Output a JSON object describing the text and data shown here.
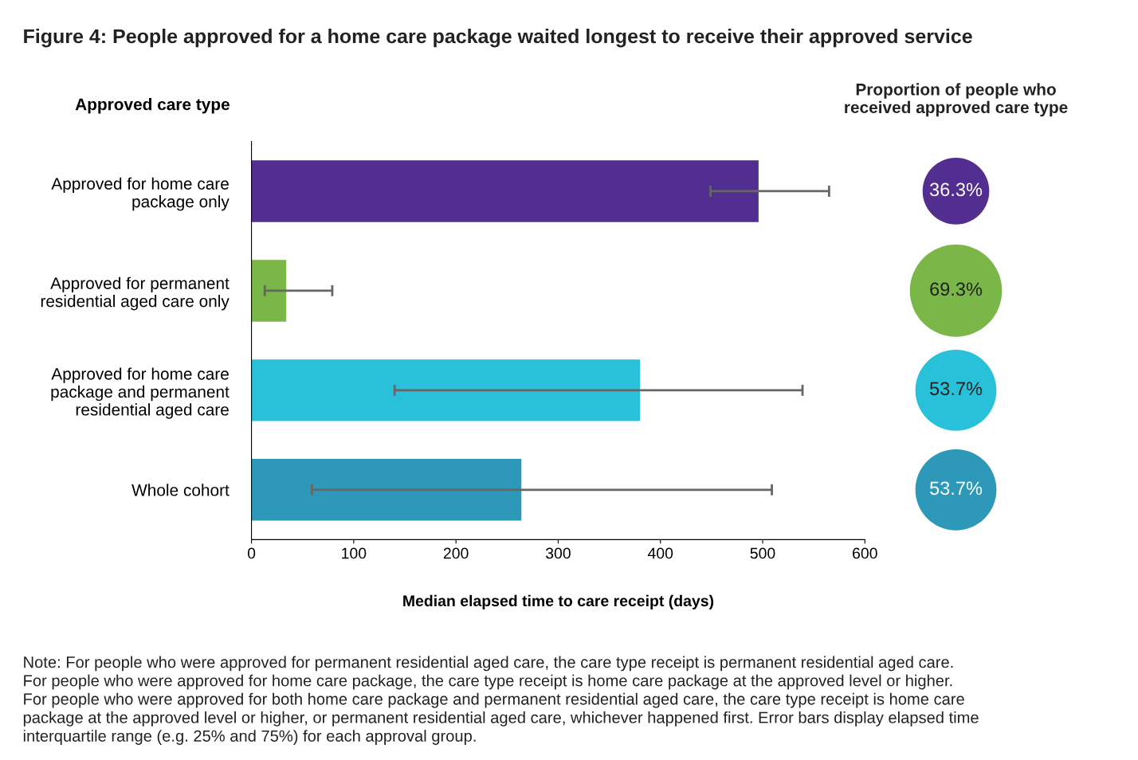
{
  "chart_data": [
    {
      "type": "bar",
      "orientation": "horizontal",
      "title": "Figure 4: People approved for a home care package waited longest to receive their approved service",
      "ylabel": "Approved care type",
      "xlabel": "Median elapsed time to care receipt (days)",
      "categories": [
        "Approved for home care\npackage only",
        "Approved for permanent\nresidential aged care only",
        "Approved for home care\npackage and permanent\nresidential aged care",
        "Whole cohort"
      ],
      "values": [
        496,
        34,
        380,
        264
      ],
      "colors": [
        "#522e91",
        "#7ab648",
        "#29c0d9",
        "#2e98b8"
      ],
      "errors": [
        [
          449,
          565
        ],
        [
          13,
          79
        ],
        [
          140,
          539
        ],
        [
          59,
          509
        ]
      ],
      "xlim": [
        0,
        600
      ],
      "xticks": [
        0,
        100,
        200,
        300,
        400,
        500,
        600
      ],
      "grid": false,
      "legend": false,
      "annotations": [
        "Note: For people who were approved for permanent residential aged care, the care type receipt is permanent residential aged care.\nFor people who were approved for home care package, the care type receipt is home care package at the approved level or higher.\nFor people who were approved for both home care package and permanent residential aged care, the care type receipt is home care\npackage at the approved level or higher, or permanent residential aged care, whichever happened first. Error bars display elapsed time\ninterquartile range (e.g. 25% and 75%) for each approval group."
      ]
    },
    {
      "type": "other",
      "title": "Proportion of people who\nreceived approved care type",
      "values": [
        36.3,
        69.3,
        53.7,
        53.7
      ],
      "colors": [
        "#522e91",
        "#7ab648",
        "#29c0d9",
        "#2e98b8"
      ],
      "value_labels": [
        "36.3%",
        "69.3%",
        "53.7%",
        "53.7%"
      ]
    }
  ]
}
